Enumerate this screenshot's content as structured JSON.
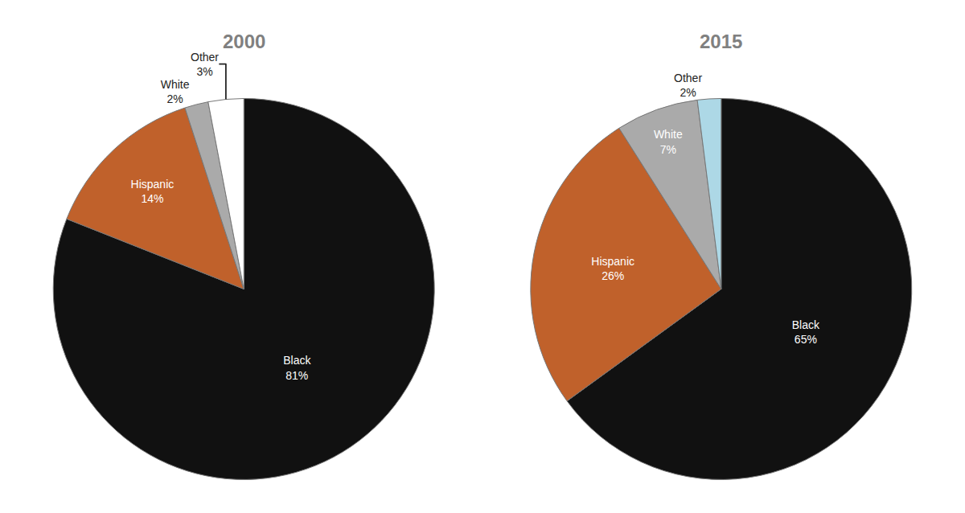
{
  "chart_data": [
    {
      "type": "pie",
      "title": "2000",
      "categories": [
        "Black",
        "Hispanic",
        "White",
        "Other"
      ],
      "values": [
        81,
        14,
        2,
        3
      ],
      "value_labels": [
        "Black\n81%",
        "Hispanic\n14%",
        "White\n2%",
        "Other\n3%"
      ],
      "colors": [
        "#111111",
        "#C0612B",
        "#aaaaaa",
        "#ffffff"
      ],
      "data_labels": true
    },
    {
      "type": "pie",
      "title": "2015",
      "categories": [
        "Black",
        "Hispanic",
        "White",
        "Other"
      ],
      "values": [
        65,
        26,
        7,
        2
      ],
      "value_labels": [
        "Black\n65%",
        "Hispanic\n26%",
        "White\n7%",
        "Other\n2%"
      ],
      "colors": [
        "#111111",
        "#C0612B",
        "#aaaaaa",
        "#add8e6"
      ],
      "data_labels": true
    }
  ]
}
